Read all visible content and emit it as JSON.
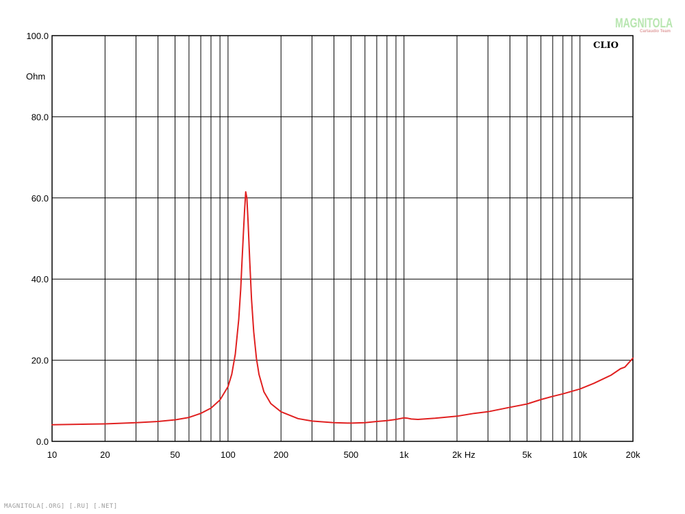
{
  "watermark": {
    "text": "MAGNITOLA",
    "sub": "Cartaudio Team",
    "color": "#b8e6b0",
    "sub_color": "#e0a0a0"
  },
  "brand_label": "CLIO",
  "footer": "MAGNITOLA[.ORG] [.RU] [.NET]",
  "colors": {
    "curve": "#e02020",
    "grid": "#000000",
    "background": "#ffffff"
  },
  "chart_data": {
    "type": "line",
    "title": "",
    "xlabel": "Hz",
    "ylabel": "Ohm",
    "xscale": "log",
    "xlim": [
      10,
      20000
    ],
    "ylim": [
      0,
      100
    ],
    "grid": true,
    "x_ticks": [
      {
        "value": 10,
        "label": "10"
      },
      {
        "value": 20,
        "label": "20"
      },
      {
        "value": 50,
        "label": "50"
      },
      {
        "value": 100,
        "label": "100"
      },
      {
        "value": 200,
        "label": "200"
      },
      {
        "value": 500,
        "label": "500"
      },
      {
        "value": 1000,
        "label": "1k"
      },
      {
        "value": 2000,
        "label": "2k"
      },
      {
        "value": 5000,
        "label": "5k"
      },
      {
        "value": 10000,
        "label": "10k"
      },
      {
        "value": 20000,
        "label": "20k"
      }
    ],
    "y_ticks": [
      {
        "value": 0,
        "label": "0.0"
      },
      {
        "value": 20,
        "label": "20.0"
      },
      {
        "value": 40,
        "label": "40.0"
      },
      {
        "value": 60,
        "label": "60.0"
      },
      {
        "value": 80,
        "label": "80.0"
      },
      {
        "value": 100,
        "label": "100.0"
      }
    ],
    "series": [
      {
        "color": "#e02020",
        "x": [
          10,
          20,
          30,
          40,
          50,
          60,
          70,
          80,
          90,
          100,
          105,
          110,
          115,
          118,
          120,
          122,
          124,
          126,
          128,
          130,
          133,
          136,
          140,
          145,
          150,
          160,
          175,
          200,
          250,
          300,
          400,
          500,
          600,
          700,
          800,
          900,
          1000,
          1050,
          1100,
          1200,
          1500,
          2000,
          2500,
          3000,
          4000,
          5000,
          6000,
          7000,
          8000,
          10000,
          12000,
          15000,
          17000,
          18000,
          20000
        ],
        "y": [
          4.1,
          4.3,
          4.6,
          4.9,
          5.3,
          5.9,
          6.9,
          8.2,
          10.2,
          13.5,
          16.5,
          21.5,
          30.0,
          37.5,
          44.0,
          50.5,
          56.5,
          61.5,
          60.0,
          54.0,
          44.0,
          35.0,
          27.0,
          20.5,
          16.5,
          12.2,
          9.3,
          7.3,
          5.6,
          5.0,
          4.6,
          4.5,
          4.6,
          4.9,
          5.1,
          5.4,
          5.8,
          5.7,
          5.5,
          5.4,
          5.7,
          6.2,
          6.9,
          7.3,
          8.4,
          9.2,
          10.3,
          11.1,
          11.7,
          12.9,
          14.3,
          16.3,
          17.9,
          18.3,
          20.5
        ]
      }
    ]
  }
}
